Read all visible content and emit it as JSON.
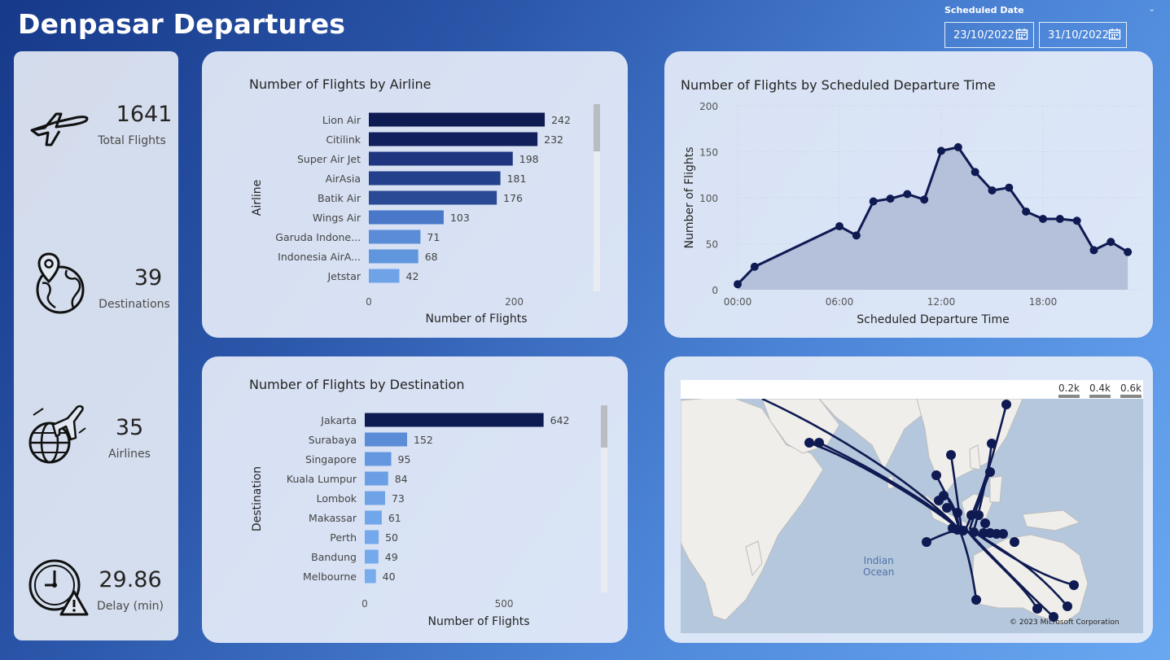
{
  "header": {
    "title": "Denpasar Departures"
  },
  "slicer": {
    "label": "Scheduled Date",
    "start": "23/10/2022",
    "end": "31/10/2022"
  },
  "kpis": [
    {
      "value": "1641",
      "label": "Total Flights",
      "icon": "airplane-icon"
    },
    {
      "value": "39",
      "label": "Destinations",
      "icon": "globe-location-icon"
    },
    {
      "value": "35",
      "label": "Airlines",
      "icon": "globe-airplane-icon"
    },
    {
      "value": "29.86",
      "label": "Delay (min)",
      "icon": "clock-warning-icon"
    }
  ],
  "chart_data": [
    {
      "type": "bar",
      "orientation": "horizontal",
      "title": "Number of Flights by Airline",
      "xlabel": "Number of Flights",
      "ylabel": "Airline",
      "categories": [
        "Lion Air",
        "Citilink",
        "Super Air Jet",
        "AirAsia",
        "Batik Air",
        "Wings Air",
        "Garuda Indone...",
        "Indonesia AirA...",
        "Jetstar"
      ],
      "values": [
        242,
        232,
        198,
        181,
        176,
        103,
        71,
        68,
        42
      ],
      "xticks": [
        0,
        200
      ],
      "xlim": [
        0,
        280
      ],
      "colors": [
        "#0e1a52",
        "#111f5c",
        "#1f3580",
        "#23408c",
        "#2a4a96",
        "#4a78c8",
        "#5b8cd8",
        "#6096de",
        "#6fa3e8"
      ]
    },
    {
      "type": "bar",
      "orientation": "horizontal",
      "title": "Number of Flights by Destination",
      "xlabel": "Number of Flights",
      "ylabel": "Destination",
      "categories": [
        "Jakarta",
        "Surabaya",
        "Singapore",
        "Kuala Lumpur",
        "Lombok",
        "Makassar",
        "Perth",
        "Bandung",
        "Melbourne"
      ],
      "values": [
        642,
        152,
        95,
        84,
        73,
        61,
        50,
        49,
        40
      ],
      "xticks": [
        0,
        500
      ],
      "xlim": [
        0,
        760
      ],
      "colors": [
        "#0e1a52",
        "#5b8cd8",
        "#6398e0",
        "#6a9fe5",
        "#6ea3e8",
        "#71a6ea",
        "#73a8ec",
        "#74a9ec",
        "#76abee"
      ]
    },
    {
      "type": "area",
      "title": "Number of Flights by Scheduled Departure Time",
      "xlabel": "Scheduled Departure Time",
      "ylabel": "Number of Flights",
      "x": [
        0,
        1,
        6,
        7,
        8,
        9,
        10,
        11,
        12,
        13,
        14,
        15,
        16,
        17,
        18,
        19,
        20,
        21,
        22,
        23
      ],
      "values": [
        6,
        25,
        69,
        59,
        96,
        99,
        104,
        98,
        151,
        155,
        128,
        108,
        111,
        85,
        77,
        77,
        75,
        43,
        52,
        41
      ],
      "ylim": [
        0,
        200
      ],
      "yticks": [
        0,
        50,
        100,
        150,
        200
      ],
      "xticks": [
        "00:00",
        "06:00",
        "12:00",
        "18:00"
      ],
      "grid": true
    }
  ],
  "map": {
    "legend": [
      "0.2k",
      "0.4k",
      "0.6k"
    ],
    "ocean_label_1": "Indian",
    "ocean_label_2": "Ocean",
    "copyright": "© 2023 Microsoft Corporation"
  }
}
